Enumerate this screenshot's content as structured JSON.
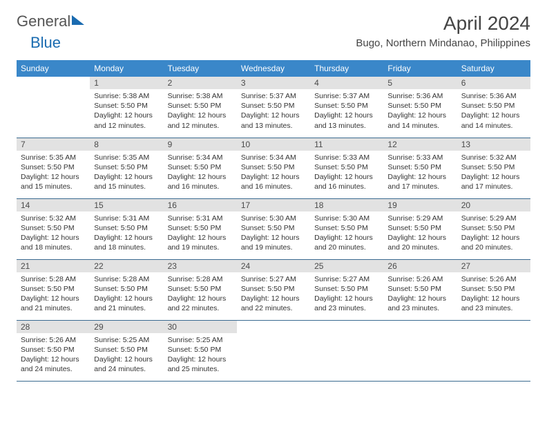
{
  "logo": {
    "text1": "General",
    "text2": "Blue"
  },
  "title": "April 2024",
  "location": "Bugo, Northern Mindanao, Philippines",
  "headers": [
    "Sunday",
    "Monday",
    "Tuesday",
    "Wednesday",
    "Thursday",
    "Friday",
    "Saturday"
  ],
  "colors": {
    "header_bg": "#3a87c9",
    "header_text": "#ffffff",
    "daynum_bg": "#e2e2e2",
    "daynum_text": "#4a4a4a",
    "border": "#3a6a90",
    "body_text": "#333333"
  },
  "weeks": [
    [
      {
        "empty": true
      },
      {
        "num": "1",
        "sunrise": "Sunrise: 5:38 AM",
        "sunset": "Sunset: 5:50 PM",
        "daylight": "Daylight: 12 hours and 12 minutes."
      },
      {
        "num": "2",
        "sunrise": "Sunrise: 5:38 AM",
        "sunset": "Sunset: 5:50 PM",
        "daylight": "Daylight: 12 hours and 12 minutes."
      },
      {
        "num": "3",
        "sunrise": "Sunrise: 5:37 AM",
        "sunset": "Sunset: 5:50 PM",
        "daylight": "Daylight: 12 hours and 13 minutes."
      },
      {
        "num": "4",
        "sunrise": "Sunrise: 5:37 AM",
        "sunset": "Sunset: 5:50 PM",
        "daylight": "Daylight: 12 hours and 13 minutes."
      },
      {
        "num": "5",
        "sunrise": "Sunrise: 5:36 AM",
        "sunset": "Sunset: 5:50 PM",
        "daylight": "Daylight: 12 hours and 14 minutes."
      },
      {
        "num": "6",
        "sunrise": "Sunrise: 5:36 AM",
        "sunset": "Sunset: 5:50 PM",
        "daylight": "Daylight: 12 hours and 14 minutes."
      }
    ],
    [
      {
        "num": "7",
        "sunrise": "Sunrise: 5:35 AM",
        "sunset": "Sunset: 5:50 PM",
        "daylight": "Daylight: 12 hours and 15 minutes."
      },
      {
        "num": "8",
        "sunrise": "Sunrise: 5:35 AM",
        "sunset": "Sunset: 5:50 PM",
        "daylight": "Daylight: 12 hours and 15 minutes."
      },
      {
        "num": "9",
        "sunrise": "Sunrise: 5:34 AM",
        "sunset": "Sunset: 5:50 PM",
        "daylight": "Daylight: 12 hours and 16 minutes."
      },
      {
        "num": "10",
        "sunrise": "Sunrise: 5:34 AM",
        "sunset": "Sunset: 5:50 PM",
        "daylight": "Daylight: 12 hours and 16 minutes."
      },
      {
        "num": "11",
        "sunrise": "Sunrise: 5:33 AM",
        "sunset": "Sunset: 5:50 PM",
        "daylight": "Daylight: 12 hours and 16 minutes."
      },
      {
        "num": "12",
        "sunrise": "Sunrise: 5:33 AM",
        "sunset": "Sunset: 5:50 PM",
        "daylight": "Daylight: 12 hours and 17 minutes."
      },
      {
        "num": "13",
        "sunrise": "Sunrise: 5:32 AM",
        "sunset": "Sunset: 5:50 PM",
        "daylight": "Daylight: 12 hours and 17 minutes."
      }
    ],
    [
      {
        "num": "14",
        "sunrise": "Sunrise: 5:32 AM",
        "sunset": "Sunset: 5:50 PM",
        "daylight": "Daylight: 12 hours and 18 minutes."
      },
      {
        "num": "15",
        "sunrise": "Sunrise: 5:31 AM",
        "sunset": "Sunset: 5:50 PM",
        "daylight": "Daylight: 12 hours and 18 minutes."
      },
      {
        "num": "16",
        "sunrise": "Sunrise: 5:31 AM",
        "sunset": "Sunset: 5:50 PM",
        "daylight": "Daylight: 12 hours and 19 minutes."
      },
      {
        "num": "17",
        "sunrise": "Sunrise: 5:30 AM",
        "sunset": "Sunset: 5:50 PM",
        "daylight": "Daylight: 12 hours and 19 minutes."
      },
      {
        "num": "18",
        "sunrise": "Sunrise: 5:30 AM",
        "sunset": "Sunset: 5:50 PM",
        "daylight": "Daylight: 12 hours and 20 minutes."
      },
      {
        "num": "19",
        "sunrise": "Sunrise: 5:29 AM",
        "sunset": "Sunset: 5:50 PM",
        "daylight": "Daylight: 12 hours and 20 minutes."
      },
      {
        "num": "20",
        "sunrise": "Sunrise: 5:29 AM",
        "sunset": "Sunset: 5:50 PM",
        "daylight": "Daylight: 12 hours and 20 minutes."
      }
    ],
    [
      {
        "num": "21",
        "sunrise": "Sunrise: 5:28 AM",
        "sunset": "Sunset: 5:50 PM",
        "daylight": "Daylight: 12 hours and 21 minutes."
      },
      {
        "num": "22",
        "sunrise": "Sunrise: 5:28 AM",
        "sunset": "Sunset: 5:50 PM",
        "daylight": "Daylight: 12 hours and 21 minutes."
      },
      {
        "num": "23",
        "sunrise": "Sunrise: 5:28 AM",
        "sunset": "Sunset: 5:50 PM",
        "daylight": "Daylight: 12 hours and 22 minutes."
      },
      {
        "num": "24",
        "sunrise": "Sunrise: 5:27 AM",
        "sunset": "Sunset: 5:50 PM",
        "daylight": "Daylight: 12 hours and 22 minutes."
      },
      {
        "num": "25",
        "sunrise": "Sunrise: 5:27 AM",
        "sunset": "Sunset: 5:50 PM",
        "daylight": "Daylight: 12 hours and 23 minutes."
      },
      {
        "num": "26",
        "sunrise": "Sunrise: 5:26 AM",
        "sunset": "Sunset: 5:50 PM",
        "daylight": "Daylight: 12 hours and 23 minutes."
      },
      {
        "num": "27",
        "sunrise": "Sunrise: 5:26 AM",
        "sunset": "Sunset: 5:50 PM",
        "daylight": "Daylight: 12 hours and 23 minutes."
      }
    ],
    [
      {
        "num": "28",
        "sunrise": "Sunrise: 5:26 AM",
        "sunset": "Sunset: 5:50 PM",
        "daylight": "Daylight: 12 hours and 24 minutes."
      },
      {
        "num": "29",
        "sunrise": "Sunrise: 5:25 AM",
        "sunset": "Sunset: 5:50 PM",
        "daylight": "Daylight: 12 hours and 24 minutes."
      },
      {
        "num": "30",
        "sunrise": "Sunrise: 5:25 AM",
        "sunset": "Sunset: 5:50 PM",
        "daylight": "Daylight: 12 hours and 25 minutes."
      },
      {
        "empty": true
      },
      {
        "empty": true
      },
      {
        "empty": true
      },
      {
        "empty": true
      }
    ]
  ]
}
